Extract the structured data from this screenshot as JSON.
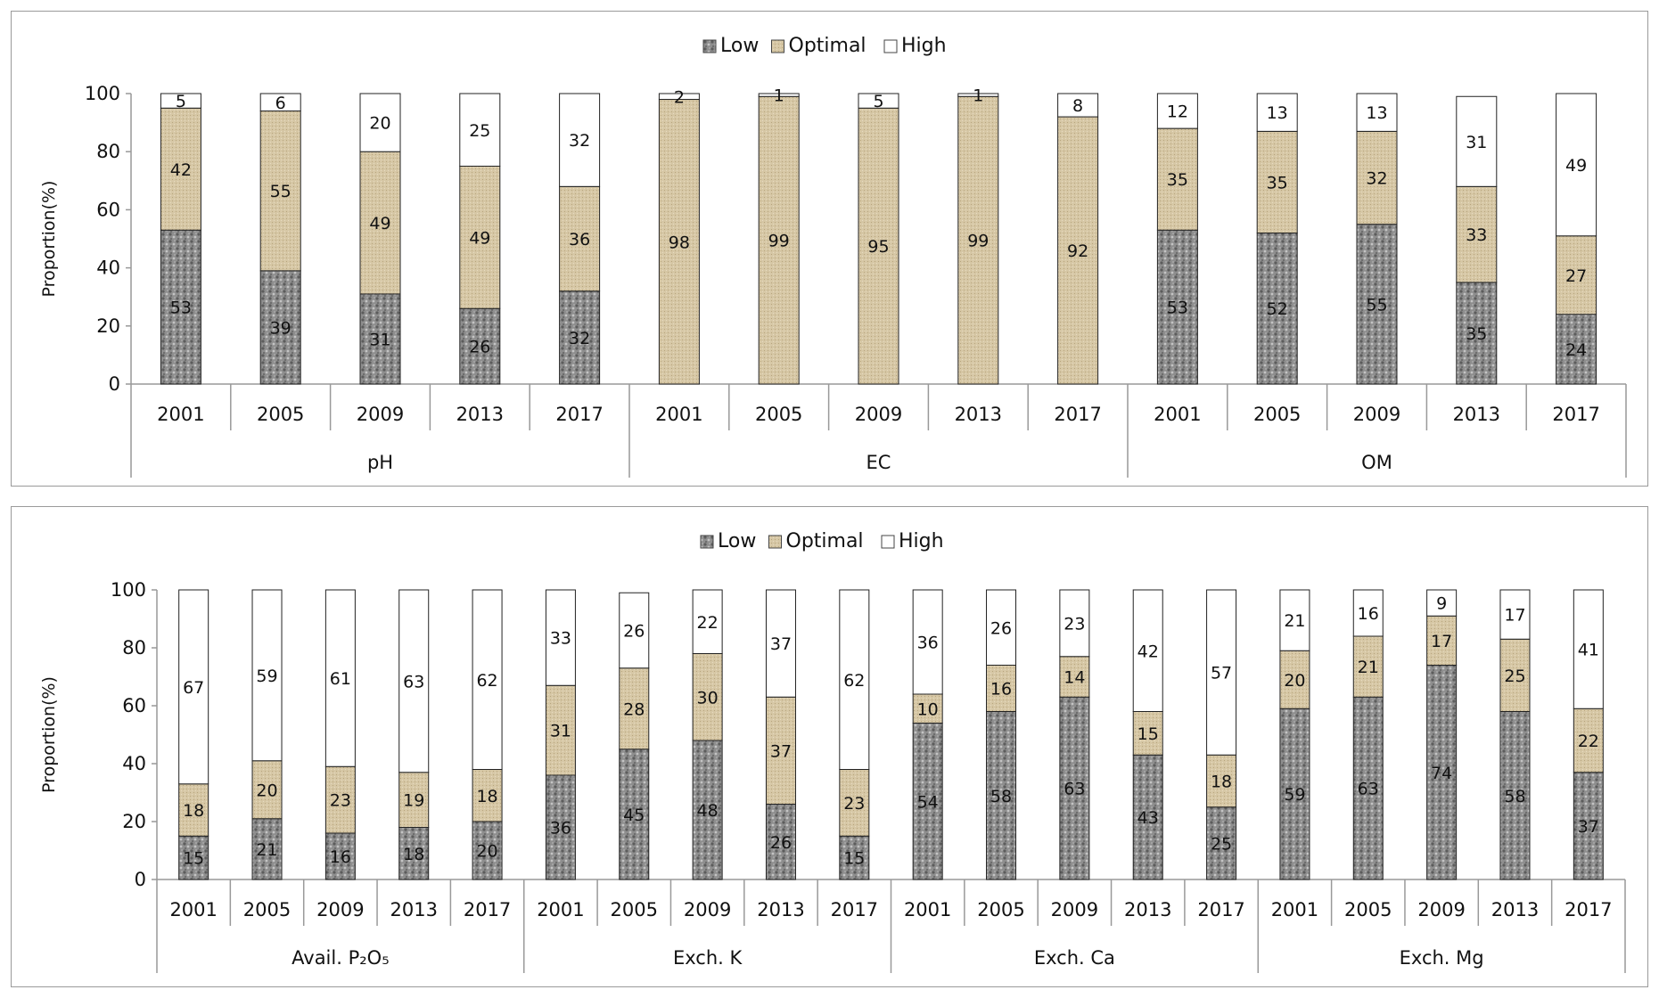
{
  "chart_data": [
    {
      "type": "bar",
      "stacked": true,
      "ylabel": "Proportion(%)",
      "ylim": [
        0,
        100
      ],
      "yticks": [
        0,
        20,
        40,
        60,
        80,
        100
      ],
      "grid": false,
      "legend_position": "top-center",
      "legend": [
        "Low",
        "Optimal",
        "High"
      ],
      "series_colors": {
        "Low": "#8e8e8e",
        "Optimal": "#d6c7a5",
        "High": "#ffffff"
      },
      "groups": [
        {
          "name": "pH",
          "years": [
            "2001",
            "2005",
            "2009",
            "2013",
            "2017"
          ],
          "Low": [
            53,
            39,
            31,
            26,
            32
          ],
          "Optimal": [
            42,
            55,
            49,
            49,
            36
          ],
          "High": [
            5,
            6,
            20,
            25,
            32
          ]
        },
        {
          "name": "EC",
          "years": [
            "2001",
            "2005",
            "2009",
            "2013",
            "2017"
          ],
          "Low": [
            0,
            0,
            0,
            0,
            0
          ],
          "Optimal": [
            98,
            99,
            95,
            99,
            92
          ],
          "High": [
            2,
            1,
            5,
            1,
            8
          ]
        },
        {
          "name": "OM",
          "years": [
            "2001",
            "2005",
            "2009",
            "2013",
            "2017"
          ],
          "Low": [
            53,
            52,
            55,
            35,
            24
          ],
          "Optimal": [
            35,
            35,
            32,
            33,
            27
          ],
          "High": [
            12,
            13,
            13,
            31,
            49
          ]
        }
      ]
    },
    {
      "type": "bar",
      "stacked": true,
      "ylabel": "Proportion(%)",
      "ylim": [
        0,
        100
      ],
      "yticks": [
        0,
        20,
        40,
        60,
        80,
        100
      ],
      "grid": false,
      "legend_position": "top-center",
      "legend": [
        "Low",
        "Optimal",
        "High"
      ],
      "series_colors": {
        "Low": "#8e8e8e",
        "Optimal": "#d6c7a5",
        "High": "#ffffff"
      },
      "groups": [
        {
          "name": "Avail. P₂O₅",
          "years": [
            "2001",
            "2005",
            "2009",
            "2013",
            "2017"
          ],
          "Low": [
            15,
            21,
            16,
            18,
            20
          ],
          "Optimal": [
            18,
            20,
            23,
            19,
            18
          ],
          "High": [
            67,
            59,
            61,
            63,
            62
          ]
        },
        {
          "name": "Exch. K",
          "years": [
            "2001",
            "2005",
            "2009",
            "2013",
            "2017"
          ],
          "Low": [
            36,
            45,
            48,
            26,
            15
          ],
          "Optimal": [
            31,
            28,
            30,
            37,
            23
          ],
          "High": [
            33,
            26,
            22,
            37,
            62
          ]
        },
        {
          "name": "Exch. Ca",
          "years": [
            "2001",
            "2005",
            "2009",
            "2013",
            "2017"
          ],
          "Low": [
            54,
            58,
            63,
            43,
            25
          ],
          "Optimal": [
            10,
            16,
            14,
            15,
            18
          ],
          "High": [
            36,
            26,
            23,
            42,
            57
          ]
        },
        {
          "name": "Exch. Mg",
          "years": [
            "2001",
            "2005",
            "2009",
            "2013",
            "2017"
          ],
          "Low": [
            59,
            63,
            74,
            58,
            37
          ],
          "Optimal": [
            20,
            21,
            17,
            25,
            22
          ],
          "High": [
            21,
            16,
            9,
            17,
            41
          ]
        }
      ]
    }
  ]
}
